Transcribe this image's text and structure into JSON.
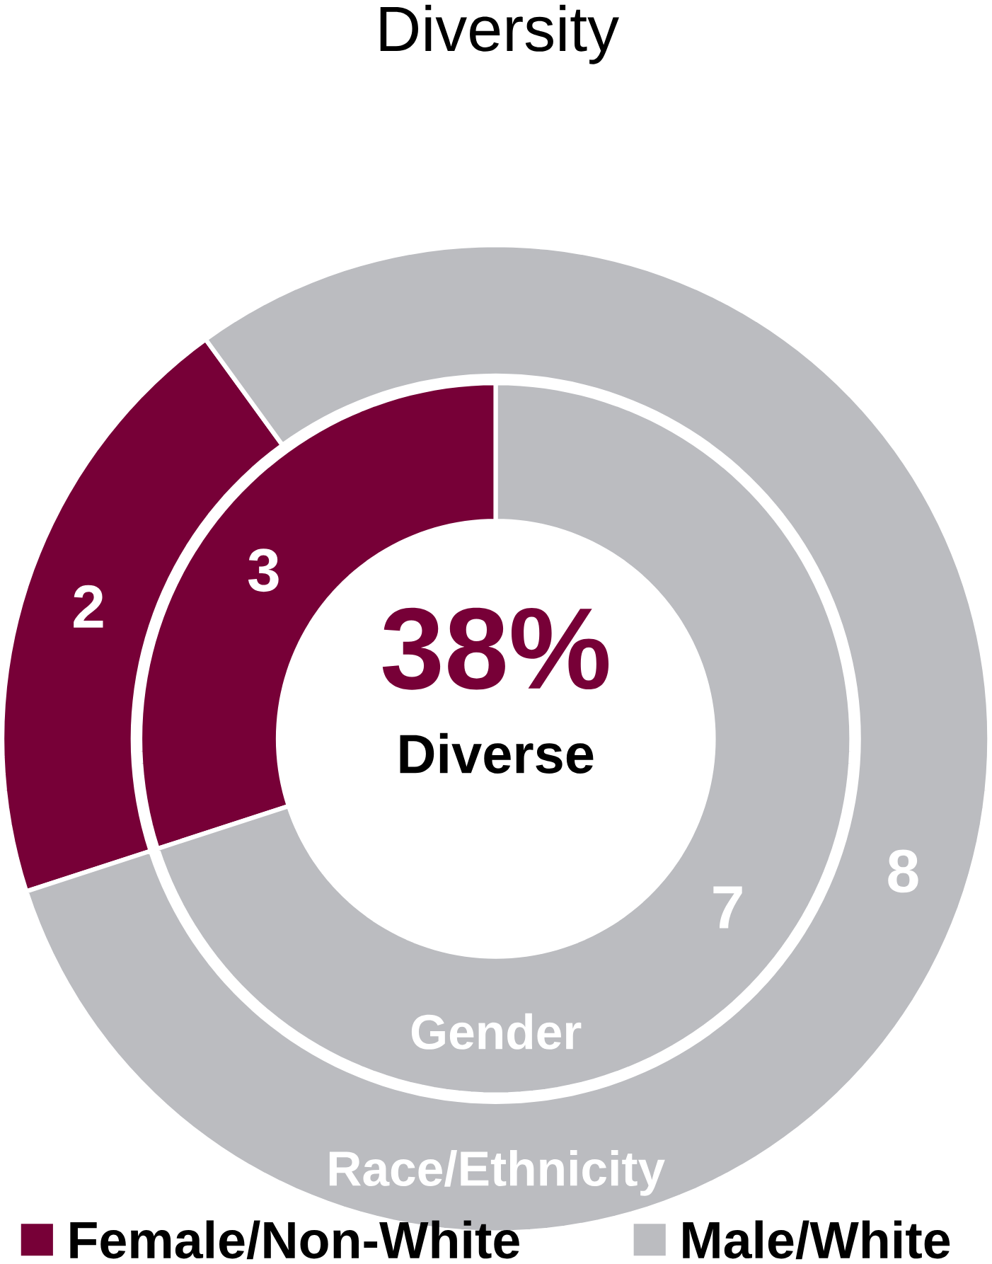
{
  "chart_data": {
    "type": "donut",
    "title": "Diversity",
    "categories": [
      "Female/Non-White",
      "Male/White"
    ],
    "colors": [
      "#770037",
      "#bbbcc0"
    ],
    "series": [
      {
        "name": "Gender",
        "values": [
          3,
          7
        ]
      },
      {
        "name": "Race/Ethnicity",
        "values": [
          2,
          8
        ]
      }
    ],
    "data_labels": true,
    "legend": "bottom",
    "annotations": [
      "38%",
      "Diverse"
    ]
  }
}
